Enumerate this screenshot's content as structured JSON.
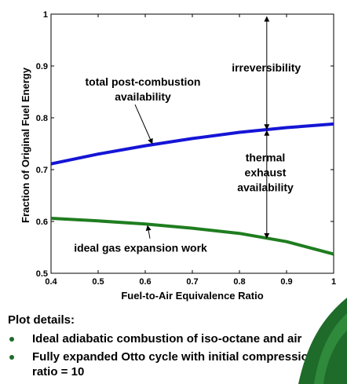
{
  "chart_data": {
    "type": "line",
    "title": "",
    "xlabel": "Fuel-to-Air Equivalence Ratio",
    "ylabel": "Fraction of Original Fuel Energy",
    "xlim": [
      0.4,
      1.0
    ],
    "ylim": [
      0.5,
      1.0
    ],
    "xticks": [
      "0.4",
      "0.5",
      "0.6",
      "0.7",
      "0.8",
      "0.9",
      "1"
    ],
    "yticks": [
      "0.5",
      "0.6",
      "0.7",
      "0.8",
      "0.9",
      "1"
    ],
    "grid": false,
    "series": [
      {
        "color": "#1515d6",
        "points": [
          [
            0.4,
            0.711
          ],
          [
            0.5,
            0.73
          ],
          [
            0.6,
            0.746
          ],
          [
            0.7,
            0.76
          ],
          [
            0.8,
            0.772
          ],
          [
            0.9,
            0.781
          ],
          [
            1.0,
            0.788
          ]
        ]
      },
      {
        "color": "#1f7d1f",
        "points": [
          [
            0.4,
            0.606
          ],
          [
            0.5,
            0.601
          ],
          [
            0.6,
            0.595
          ],
          [
            0.7,
            0.587
          ],
          [
            0.8,
            0.577
          ],
          [
            0.9,
            0.561
          ],
          [
            1.0,
            0.537
          ]
        ]
      }
    ],
    "annotations": [
      {
        "lines": [
          "total post-combustion",
          "availability"
        ],
        "x": 0.595,
        "y": 0.855,
        "arrow_to": [
          0.615,
          0.75
        ]
      },
      {
        "lines": [
          "ideal gas expansion work"
        ],
        "x": 0.59,
        "y": 0.549,
        "arrow_to": [
          0.605,
          0.592
        ]
      },
      {
        "lines": [
          "irreversibility"
        ],
        "x": 0.857,
        "y": 0.897
      },
      {
        "lines": [
          "thermal",
          "exhaust",
          "availability"
        ],
        "x": 0.855,
        "y": 0.695
      }
    ],
    "vertical_arrows": [
      {
        "x": 0.858,
        "from": 0.995,
        "to": 0.778
      },
      {
        "x": 0.858,
        "from": 0.775,
        "to": 0.568
      }
    ]
  },
  "details": {
    "title": "Plot details:",
    "bullets": [
      "Ideal adiabatic combustion of iso-octane and air",
      "Fully expanded Otto cycle with initial compression ratio = 10"
    ]
  },
  "colors": {
    "accent_green": "#1f6b2a"
  }
}
